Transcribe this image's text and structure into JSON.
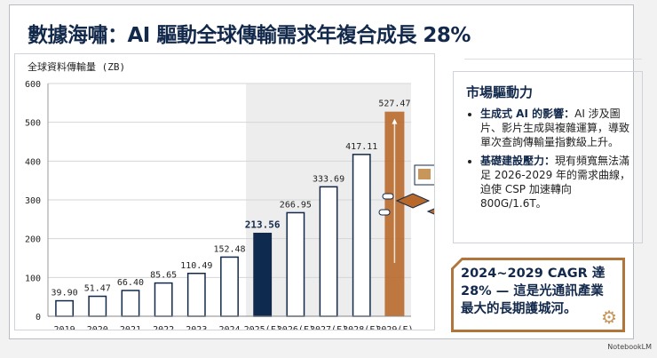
{
  "title": "數據海嘯：AI 驅動全球傳輸需求年複合成長 28%",
  "chart_data": {
    "type": "bar",
    "ylabel": "全球資料傳輸量 (ZB)",
    "ylim": [
      0,
      600
    ],
    "yticks": [
      0,
      100,
      200,
      300,
      400,
      500,
      600
    ],
    "categories": [
      "2019",
      "2020",
      "2021",
      "2022",
      "2023",
      "2024",
      "2025(F)",
      "2026(F)",
      "2027(F)",
      "2028(F)",
      "2029(F)"
    ],
    "values": [
      39.9,
      51.47,
      66.4,
      85.65,
      110.49,
      152.48,
      213.56,
      266.95,
      333.69,
      417.11,
      527.47
    ],
    "value_labels": [
      "39.90",
      "51.47",
      "66.40",
      "85.65",
      "110.49",
      "152.48",
      "213.56",
      "266.95",
      "333.69",
      "417.11",
      "527.47"
    ],
    "grid": true,
    "colors": {
      "outline": "#13294b",
      "highlight": "#0f2a4f",
      "forecast_shade": "#ededed",
      "accent": "#b8692a"
    }
  },
  "drivers": {
    "heading": "市場驅動力",
    "items": [
      {
        "bold": "生成式 AI 的影響：",
        "text": "AI 涉及圖片、影片生成與複雜運算，導致單次查詢傳輸量指數級上升。"
      },
      {
        "bold": "基礎建設壓力：",
        "text": "現有頻寬無法滿足 2026-2029 年的需求曲線，迫使 CSP 加速轉向 800G/1.6T。"
      }
    ]
  },
  "cagr": {
    "text": "2024~2029 CAGR 達 28% — 這是光通訊產業最大的長期護城河。",
    "icon": "gear-wrench-icon"
  },
  "watermark": "NotebookLM"
}
